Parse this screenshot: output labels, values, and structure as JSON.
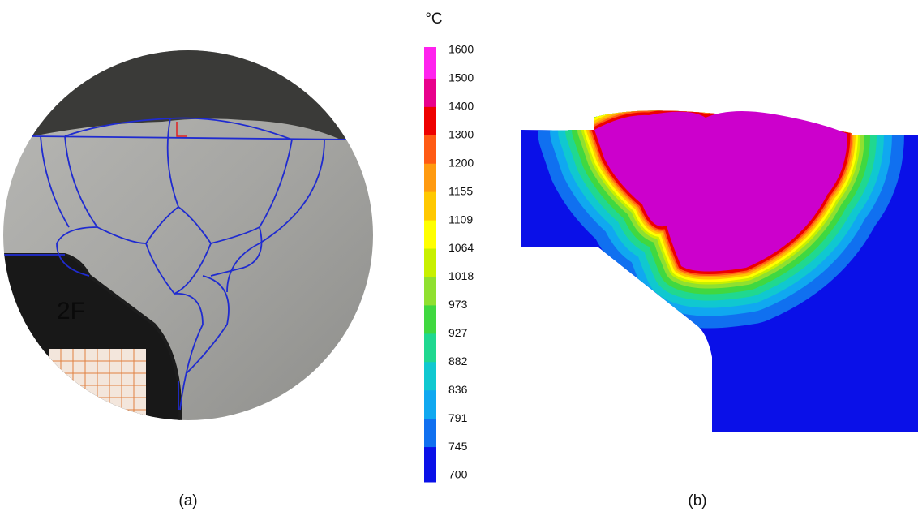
{
  "panels": [
    {
      "caption": "(a)"
    },
    {
      "caption": "(b)"
    }
  ],
  "colorbar": {
    "unit": "°C",
    "ticks": [
      1600,
      1500,
      1400,
      1300,
      1200,
      1155,
      1109,
      1064,
      1018,
      973,
      927,
      882,
      836,
      791,
      745,
      700
    ],
    "band_colors": [
      "#ff22ee",
      "#e8008c",
      "#ee0000",
      "#ff5a14",
      "#ff9a10",
      "#ffc800",
      "#ffff00",
      "#c8f000",
      "#90e030",
      "#40d840",
      "#20d890",
      "#10c8d0",
      "#10a8f0",
      "#1070f0",
      "#0a10e8"
    ]
  }
}
